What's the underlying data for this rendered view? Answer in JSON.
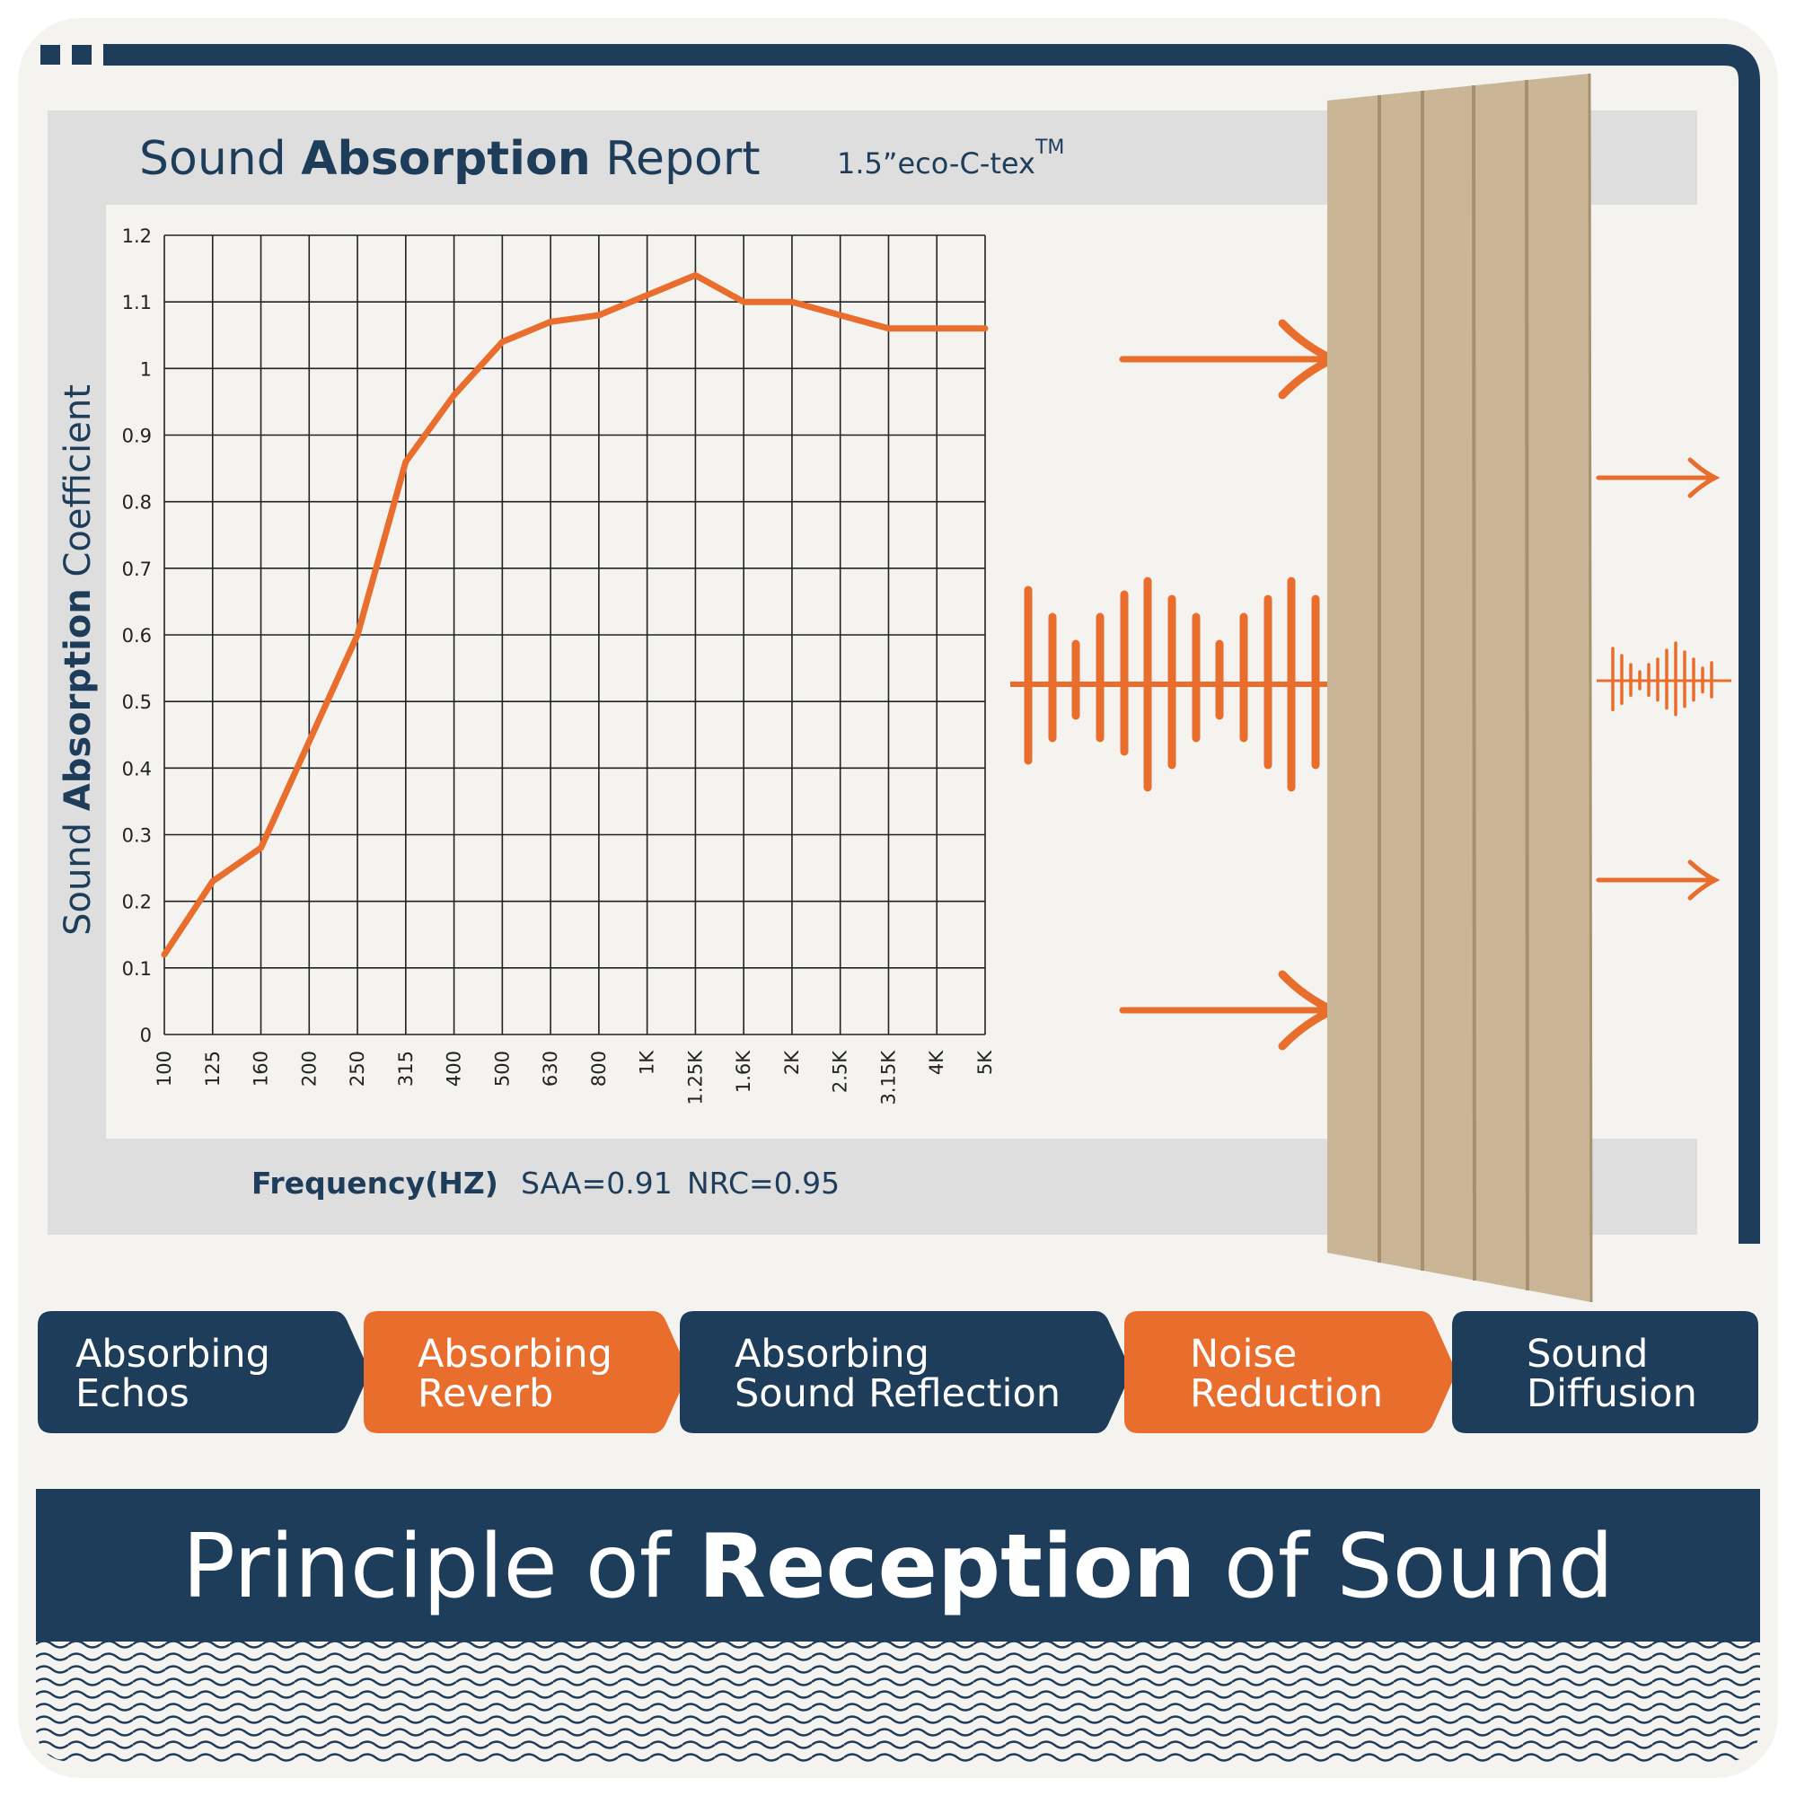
{
  "report": {
    "title_pre": "Sound ",
    "title_bold": "Absorption",
    "title_post": " Report",
    "product": "1.5”eco-C-tex",
    "product_tm": "TM"
  },
  "chart_data": {
    "type": "line",
    "categories": [
      "100",
      "125",
      "160",
      "200",
      "250",
      "315",
      "400",
      "500",
      "630",
      "800",
      "1K",
      "1.25K",
      "1.6K",
      "2K",
      "2.5K",
      "3.15K",
      "4K",
      "5K"
    ],
    "series": [
      {
        "values": [
          0.12,
          0.23,
          0.28,
          0.44,
          0.6,
          0.86,
          0.96,
          1.04,
          1.07,
          1.08,
          1.11,
          1.14,
          1.1,
          1.1,
          1.08,
          1.06,
          1.06,
          1.06
        ]
      }
    ],
    "ylim": [
      0,
      1.2
    ],
    "yticks": [
      "0",
      "0.1",
      "0.2",
      "0.3",
      "0.4",
      "0.5",
      "0.6",
      "0.7",
      "0.8",
      "0.9",
      "1",
      "1.1",
      "1.2"
    ],
    "ylabel_pre": "Sound ",
    "ylabel_bold": "Absorption",
    "ylabel_post": " Coefficient",
    "xlabel": "Frequency(HZ)",
    "saa": "SAA=0.91",
    "nrc": "NRC=0.95",
    "grid": true,
    "line_color": "#e96d2c"
  },
  "features": [
    {
      "label1": "Absorbing",
      "label2": "Echos",
      "color": "#1e3d5b"
    },
    {
      "label1": "Absorbing",
      "label2": "Reverb",
      "color": "#e96d2c"
    },
    {
      "label1": "Absorbing",
      "label2": "Sound Reflection",
      "color": "#1e3d5b"
    },
    {
      "label1": "Noise",
      "label2": "Reduction",
      "color": "#e96d2c"
    },
    {
      "label1": "Sound",
      "label2": "Diffusion",
      "color": "#1e3d5b"
    }
  ],
  "banner": {
    "pre": "Principle of ",
    "bold": "Reception",
    "post": " of Sound"
  },
  "colors": {
    "navy": "#1e3d5b",
    "orange": "#e96d2c",
    "panel": "#c9b493",
    "background": "#f5f3f0",
    "header_gray": "#dedede"
  }
}
